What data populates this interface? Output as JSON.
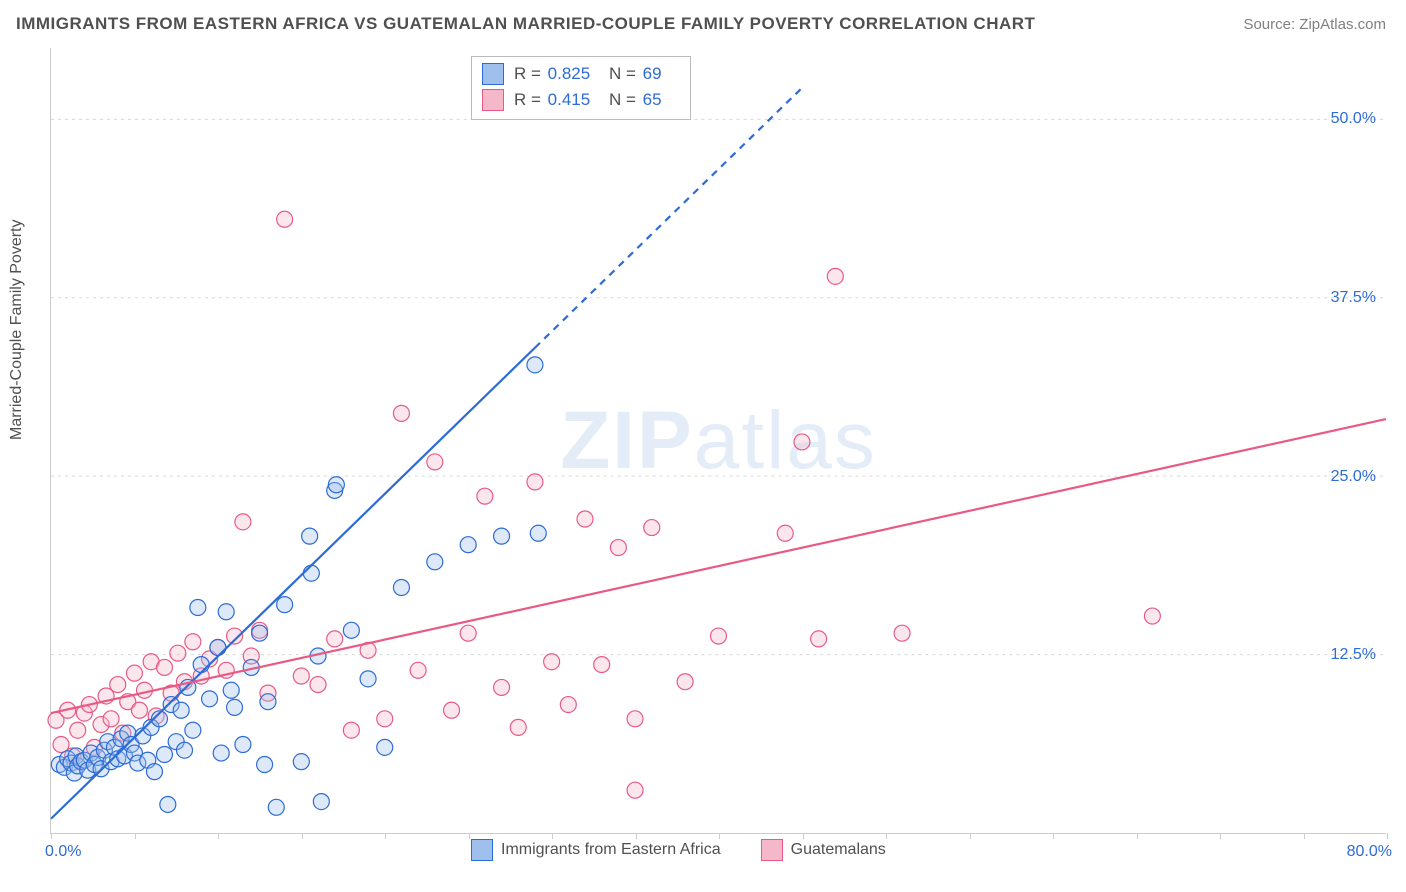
{
  "title": "IMMIGRANTS FROM EASTERN AFRICA VS GUATEMALAN MARRIED-COUPLE FAMILY POVERTY CORRELATION CHART",
  "source": "Source: ZipAtlas.com",
  "watermark_a": "ZIP",
  "watermark_b": "atlas",
  "y_axis_label": "Married-Couple Family Poverty",
  "chart": {
    "type": "scatter",
    "xlim": [
      0,
      80
    ],
    "ylim": [
      0,
      55
    ],
    "x_ticks_label_left": "0.0%",
    "x_ticks_label_right": "80.0%",
    "x_tick_positions": [
      0,
      5,
      10,
      15,
      20,
      25,
      30,
      35,
      40,
      45,
      50,
      55,
      60,
      65,
      70,
      75,
      80
    ],
    "y_grid": [
      12.5,
      25.0,
      37.5,
      50.0
    ],
    "y_tick_labels": [
      "12.5%",
      "25.0%",
      "37.5%",
      "50.0%"
    ],
    "background_color": "#ffffff",
    "grid_color": "#d8d8d8",
    "axis_color": "#cccccc",
    "label_color": "#505050",
    "value_color": "#2d6bd6",
    "marker_radius": 8,
    "marker_stroke_width": 1.2,
    "marker_fill_opacity": 0.35,
    "line_width": 2.2,
    "series": [
      {
        "name": "Immigrants from Eastern Africa",
        "legend_label": "Immigrants from Eastern Africa",
        "R_label": "R =",
        "R_value": "0.825",
        "N_label": "N =",
        "N_value": "69",
        "color_stroke": "#2d6bd6",
        "color_fill": "#9fc0ec",
        "trend": {
          "x1": 0,
          "y1": 1.0,
          "x2": 29,
          "y2": 34.0
        },
        "trend_ext": {
          "x1": 29,
          "y1": 34.0,
          "x2": 45,
          "y2": 52.2
        },
        "points": [
          [
            0.5,
            4.8
          ],
          [
            0.8,
            4.6
          ],
          [
            1.0,
            5.2
          ],
          [
            1.2,
            4.9
          ],
          [
            1.4,
            4.2
          ],
          [
            1.5,
            5.4
          ],
          [
            1.6,
            4.7
          ],
          [
            1.8,
            5.0
          ],
          [
            2.0,
            5.1
          ],
          [
            2.2,
            4.4
          ],
          [
            2.4,
            5.6
          ],
          [
            2.6,
            4.8
          ],
          [
            2.8,
            5.3
          ],
          [
            3.0,
            4.5
          ],
          [
            3.2,
            5.8
          ],
          [
            3.4,
            6.4
          ],
          [
            3.6,
            5.0
          ],
          [
            3.8,
            6.0
          ],
          [
            4.0,
            5.2
          ],
          [
            4.2,
            6.6
          ],
          [
            4.4,
            5.4
          ],
          [
            4.6,
            7.0
          ],
          [
            4.8,
            6.2
          ],
          [
            5.0,
            5.6
          ],
          [
            5.2,
            4.9
          ],
          [
            5.5,
            6.8
          ],
          [
            5.8,
            5.1
          ],
          [
            6.0,
            7.4
          ],
          [
            6.2,
            4.3
          ],
          [
            6.5,
            8.0
          ],
          [
            6.8,
            5.5
          ],
          [
            7.0,
            2.0
          ],
          [
            7.2,
            9.0
          ],
          [
            7.5,
            6.4
          ],
          [
            7.8,
            8.6
          ],
          [
            8.0,
            5.8
          ],
          [
            8.2,
            10.2
          ],
          [
            8.5,
            7.2
          ],
          [
            9.0,
            11.8
          ],
          [
            9.5,
            9.4
          ],
          [
            10.0,
            13.0
          ],
          [
            10.2,
            5.6
          ],
          [
            10.5,
            15.5
          ],
          [
            10.8,
            10.0
          ],
          [
            11.0,
            8.8
          ],
          [
            11.5,
            6.2
          ],
          [
            12.0,
            11.6
          ],
          [
            12.5,
            14.0
          ],
          [
            12.8,
            4.8
          ],
          [
            13.0,
            9.2
          ],
          [
            13.5,
            1.8
          ],
          [
            14.0,
            16.0
          ],
          [
            8.8,
            15.8
          ],
          [
            15.0,
            5.0
          ],
          [
            15.5,
            20.8
          ],
          [
            15.6,
            18.2
          ],
          [
            16.0,
            12.4
          ],
          [
            16.2,
            2.2
          ],
          [
            17.0,
            24.0
          ],
          [
            17.1,
            24.4
          ],
          [
            18.0,
            14.2
          ],
          [
            19.0,
            10.8
          ],
          [
            20.0,
            6.0
          ],
          [
            21.0,
            17.2
          ],
          [
            23.0,
            19.0
          ],
          [
            25.0,
            20.2
          ],
          [
            27.0,
            20.8
          ],
          [
            29.0,
            32.8
          ],
          [
            29.2,
            21.0
          ]
        ]
      },
      {
        "name": "Guatemalans",
        "legend_label": "Guatemalans",
        "R_label": "R =",
        "R_value": "0.415",
        "N_label": "N =",
        "N_value": "65",
        "color_stroke": "#e85a84",
        "color_fill": "#f5b8ca",
        "trend": {
          "x1": 0,
          "y1": 8.4,
          "x2": 80,
          "y2": 29.0
        },
        "points": [
          [
            0.3,
            7.9
          ],
          [
            0.6,
            6.2
          ],
          [
            1.0,
            8.6
          ],
          [
            1.3,
            5.4
          ],
          [
            1.6,
            7.2
          ],
          [
            2.0,
            8.4
          ],
          [
            2.3,
            9.0
          ],
          [
            2.6,
            6.0
          ],
          [
            3.0,
            7.6
          ],
          [
            3.3,
            9.6
          ],
          [
            3.6,
            8.0
          ],
          [
            4.0,
            10.4
          ],
          [
            4.3,
            7.0
          ],
          [
            4.6,
            9.2
          ],
          [
            5.0,
            11.2
          ],
          [
            5.3,
            8.6
          ],
          [
            5.6,
            10.0
          ],
          [
            6.0,
            12.0
          ],
          [
            6.3,
            8.2
          ],
          [
            6.8,
            11.6
          ],
          [
            7.2,
            9.8
          ],
          [
            7.6,
            12.6
          ],
          [
            8.0,
            10.6
          ],
          [
            8.5,
            13.4
          ],
          [
            9.0,
            11.0
          ],
          [
            9.5,
            12.2
          ],
          [
            10.0,
            13.0
          ],
          [
            10.5,
            11.4
          ],
          [
            11.0,
            13.8
          ],
          [
            11.5,
            21.8
          ],
          [
            12.0,
            12.4
          ],
          [
            12.5,
            14.2
          ],
          [
            13.0,
            9.8
          ],
          [
            14.0,
            43.0
          ],
          [
            15.0,
            11.0
          ],
          [
            16.0,
            10.4
          ],
          [
            17.0,
            13.6
          ],
          [
            18.0,
            7.2
          ],
          [
            19.0,
            12.8
          ],
          [
            20.0,
            8.0
          ],
          [
            21.0,
            29.4
          ],
          [
            22.0,
            11.4
          ],
          [
            23.0,
            26.0
          ],
          [
            24.0,
            8.6
          ],
          [
            25.0,
            14.0
          ],
          [
            26.0,
            23.6
          ],
          [
            27.0,
            10.2
          ],
          [
            28.0,
            7.4
          ],
          [
            29.0,
            24.6
          ],
          [
            30.0,
            12.0
          ],
          [
            31.0,
            9.0
          ],
          [
            32.0,
            22.0
          ],
          [
            33.0,
            11.8
          ],
          [
            34.0,
            20.0
          ],
          [
            35.0,
            3.0
          ],
          [
            36.0,
            21.4
          ],
          [
            38.0,
            10.6
          ],
          [
            40.0,
            13.8
          ],
          [
            44.0,
            21.0
          ],
          [
            45.0,
            27.4
          ],
          [
            46.0,
            13.6
          ],
          [
            47.0,
            39.0
          ],
          [
            51.0,
            14.0
          ],
          [
            66.0,
            15.2
          ],
          [
            35.0,
            8.0
          ]
        ]
      }
    ]
  }
}
